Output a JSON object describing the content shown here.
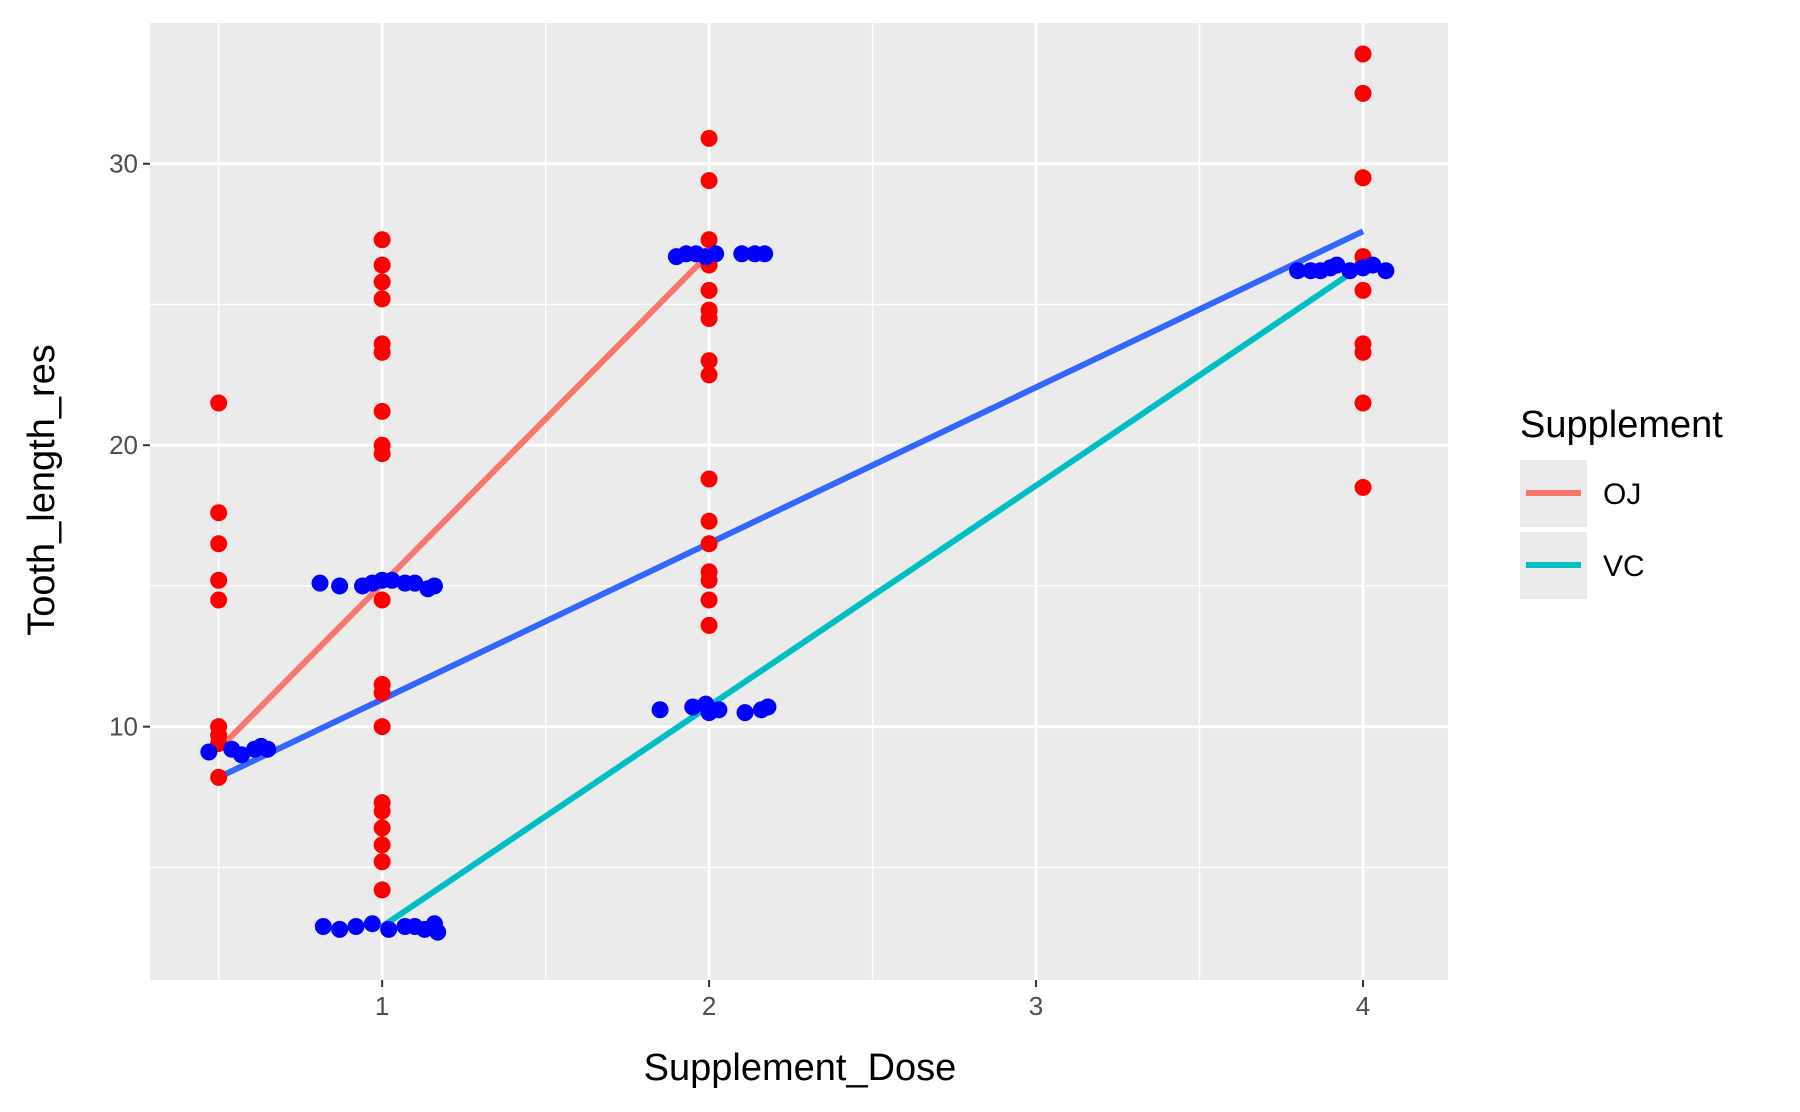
{
  "chart_data": {
    "type": "scatter",
    "xlabel": "Supplement_Dose",
    "ylabel": "Tooth_length_res",
    "xlim": [
      0.29,
      4.26
    ],
    "ylim": [
      1.0,
      35.0
    ],
    "x_ticks": [
      1,
      2,
      3,
      4
    ],
    "y_ticks": [
      10,
      20,
      30
    ],
    "grid": true,
    "legend": {
      "title": "Supplement",
      "position": "right",
      "entries": [
        {
          "label": "OJ",
          "color": "#F8766D"
        },
        {
          "label": "VC",
          "color": "#00BFC4"
        }
      ]
    },
    "colors": {
      "panel_bg": "#EBEBEB",
      "grid": "#FFFFFF",
      "red_points": "#FF0000",
      "blue_points": "#0000FF",
      "overall_line": "#3366FF",
      "oj_line": "#F8766D",
      "vc_line": "#00BFC4"
    },
    "series": [
      {
        "kind": "points",
        "color": "#FF0000",
        "points": [
          [
            0.5,
            21.5
          ],
          [
            0.5,
            17.6
          ],
          [
            0.5,
            16.5
          ],
          [
            0.5,
            15.2
          ],
          [
            0.5,
            14.5
          ],
          [
            0.5,
            10.0
          ],
          [
            0.5,
            9.7
          ],
          [
            0.5,
            9.4
          ],
          [
            0.5,
            8.2
          ],
          [
            1,
            27.3
          ],
          [
            1,
            26.4
          ],
          [
            1,
            25.8
          ],
          [
            1,
            25.2
          ],
          [
            1,
            23.6
          ],
          [
            1,
            23.3
          ],
          [
            1,
            21.2
          ],
          [
            1,
            20.0
          ],
          [
            1,
            19.7
          ],
          [
            1,
            14.5
          ],
          [
            1,
            11.5
          ],
          [
            1,
            11.2
          ],
          [
            1,
            10.0
          ],
          [
            1,
            7.3
          ],
          [
            1,
            7.0
          ],
          [
            1,
            6.4
          ],
          [
            1,
            5.8
          ],
          [
            1,
            5.2
          ],
          [
            1,
            4.2
          ],
          [
            2,
            30.9
          ],
          [
            2,
            29.4
          ],
          [
            2,
            27.3
          ],
          [
            2,
            26.4
          ],
          [
            2,
            25.5
          ],
          [
            2,
            24.8
          ],
          [
            2,
            24.5
          ],
          [
            2,
            23.0
          ],
          [
            2,
            22.5
          ],
          [
            2,
            18.8
          ],
          [
            2,
            17.3
          ],
          [
            2,
            16.5
          ],
          [
            2,
            15.5
          ],
          [
            2,
            15.2
          ],
          [
            2,
            14.5
          ],
          [
            2,
            13.6
          ],
          [
            4,
            33.9
          ],
          [
            4,
            32.5
          ],
          [
            4,
            29.5
          ],
          [
            4,
            26.7
          ],
          [
            4,
            26.4
          ],
          [
            4,
            25.5
          ],
          [
            4,
            23.6
          ],
          [
            4,
            23.3
          ],
          [
            4,
            21.5
          ],
          [
            4,
            18.5
          ]
        ]
      },
      {
        "kind": "points",
        "color": "#0000FF",
        "points": [
          [
            0.47,
            9.1
          ],
          [
            0.54,
            9.2
          ],
          [
            0.57,
            9.0
          ],
          [
            0.61,
            9.2
          ],
          [
            0.63,
            9.3
          ],
          [
            0.65,
            9.2
          ],
          [
            0.81,
            15.1
          ],
          [
            0.87,
            15.0
          ],
          [
            0.94,
            15.0
          ],
          [
            0.97,
            15.1
          ],
          [
            1.0,
            15.2
          ],
          [
            1.03,
            15.2
          ],
          [
            1.07,
            15.1
          ],
          [
            1.1,
            15.1
          ],
          [
            1.14,
            14.9
          ],
          [
            1.16,
            15.0
          ],
          [
            0.82,
            2.9
          ],
          [
            0.87,
            2.8
          ],
          [
            0.92,
            2.9
          ],
          [
            0.97,
            3.0
          ],
          [
            1.02,
            2.8
          ],
          [
            1.07,
            2.9
          ],
          [
            1.1,
            2.9
          ],
          [
            1.13,
            2.8
          ],
          [
            1.16,
            3.0
          ],
          [
            1.17,
            2.7
          ],
          [
            1.9,
            26.7
          ],
          [
            1.93,
            26.8
          ],
          [
            1.96,
            26.8
          ],
          [
            1.99,
            26.7
          ],
          [
            2.02,
            26.8
          ],
          [
            2.1,
            26.8
          ],
          [
            2.14,
            26.8
          ],
          [
            2.17,
            26.8
          ],
          [
            1.85,
            10.6
          ],
          [
            1.95,
            10.7
          ],
          [
            1.99,
            10.8
          ],
          [
            2.0,
            10.5
          ],
          [
            2.03,
            10.6
          ],
          [
            2.11,
            10.5
          ],
          [
            2.16,
            10.6
          ],
          [
            2.18,
            10.7
          ],
          [
            3.8,
            26.2
          ],
          [
            3.84,
            26.2
          ],
          [
            3.87,
            26.2
          ],
          [
            3.9,
            26.3
          ],
          [
            3.92,
            26.4
          ],
          [
            3.96,
            26.2
          ],
          [
            4.0,
            26.3
          ],
          [
            4.03,
            26.4
          ],
          [
            4.07,
            26.2
          ]
        ]
      },
      {
        "name": "",
        "kind": "line",
        "color": "#3366FF",
        "x": [
          0.5,
          4.0
        ],
        "y": [
          8.2,
          27.6
        ]
      },
      {
        "name": "OJ",
        "kind": "line",
        "color": "#F8766D",
        "x": [
          0.5,
          2.0
        ],
        "y": [
          9.2,
          26.8
        ]
      },
      {
        "name": "VC",
        "kind": "line",
        "color": "#00BFC4",
        "x": [
          1.0,
          4.0
        ],
        "y": [
          2.9,
          26.4
        ]
      }
    ]
  }
}
